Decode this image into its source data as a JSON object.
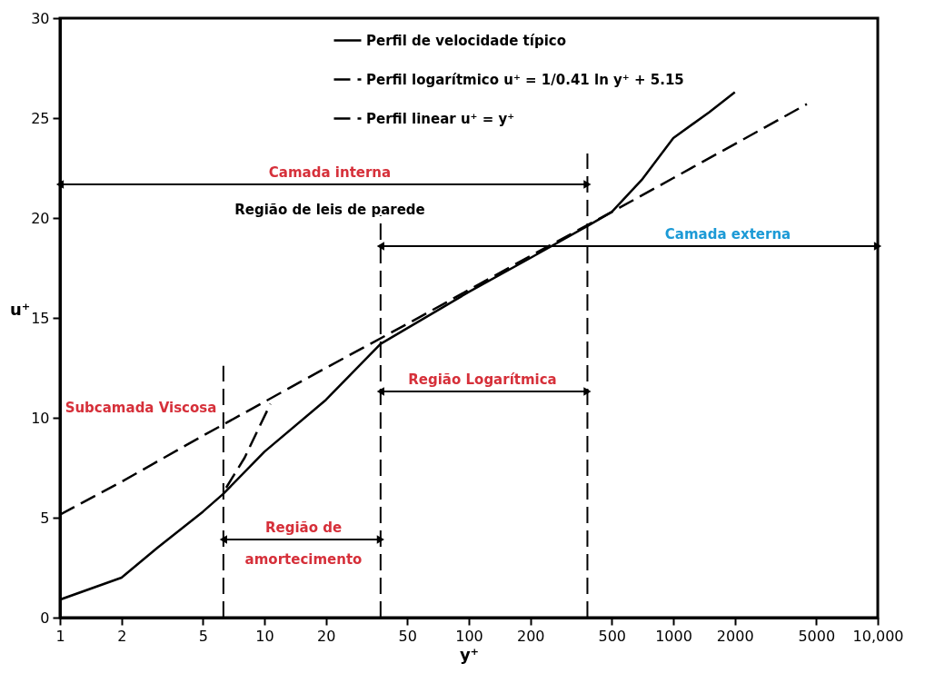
{
  "chart_data": {
    "type": "line",
    "xlabel": "y⁺",
    "ylabel": "u⁺",
    "log": "x",
    "xlim": [
      1,
      10000
    ],
    "ylim": [
      0,
      30
    ],
    "xticks": [
      1,
      2,
      5,
      10,
      20,
      50,
      100,
      200,
      500,
      1000,
      2000,
      5000,
      {
        "value": 10000,
        "label": "10,000"
      }
    ],
    "yticks": [
      0,
      5,
      10,
      15,
      20,
      25,
      30
    ],
    "grid": false,
    "legend": "top",
    "marker": "none",
    "series": [
      {
        "name": "Perfil de velocidade típico",
        "color": "#000000",
        "line_style": "solid",
        "x": [
          1,
          2,
          3,
          5,
          6.3,
          10,
          20,
          37,
          100,
          200,
          380,
          500,
          700,
          1000,
          1500,
          2000
        ],
        "values": [
          0.9,
          2.0,
          3.5,
          5.3,
          6.2,
          8.3,
          10.9,
          13.7,
          16.3,
          18.0,
          19.6,
          20.3,
          21.9,
          24.0,
          25.3,
          26.3
        ]
      },
      {
        "name": "Perfil logarítmico u⁺ = 1/0.41 ln y⁺ + 5.15",
        "color": "#000000",
        "line_style": "dashed",
        "x": [
          1,
          2,
          5,
          10,
          20,
          50,
          100,
          200,
          500,
          1000,
          2000,
          4500
        ],
        "values": [
          5.15,
          6.8,
          9.1,
          10.8,
          12.5,
          14.7,
          16.4,
          18.1,
          20.3,
          22.0,
          23.7,
          25.7
        ]
      },
      {
        "name": "Perfil linear u⁺ = y⁺",
        "color": "#000000",
        "line_style": "dashed",
        "x": [
          6.5,
          8,
          10.7
        ],
        "values": [
          6.5,
          8,
          10.7
        ]
      }
    ],
    "ref_lines": [
      {
        "axis": "x",
        "value": 6.3,
        "line_style": "dashed"
      },
      {
        "axis": "x",
        "value": 37,
        "line_style": "dashed"
      },
      {
        "axis": "x",
        "value": 380,
        "line_style": "dashed"
      }
    ],
    "annotations": [
      "Camada interna",
      "Região de leis de parede",
      "Camada externa",
      "Região Logarítmica",
      "Região de",
      "amortecimento",
      "Subcamada Viscosa"
    ]
  }
}
